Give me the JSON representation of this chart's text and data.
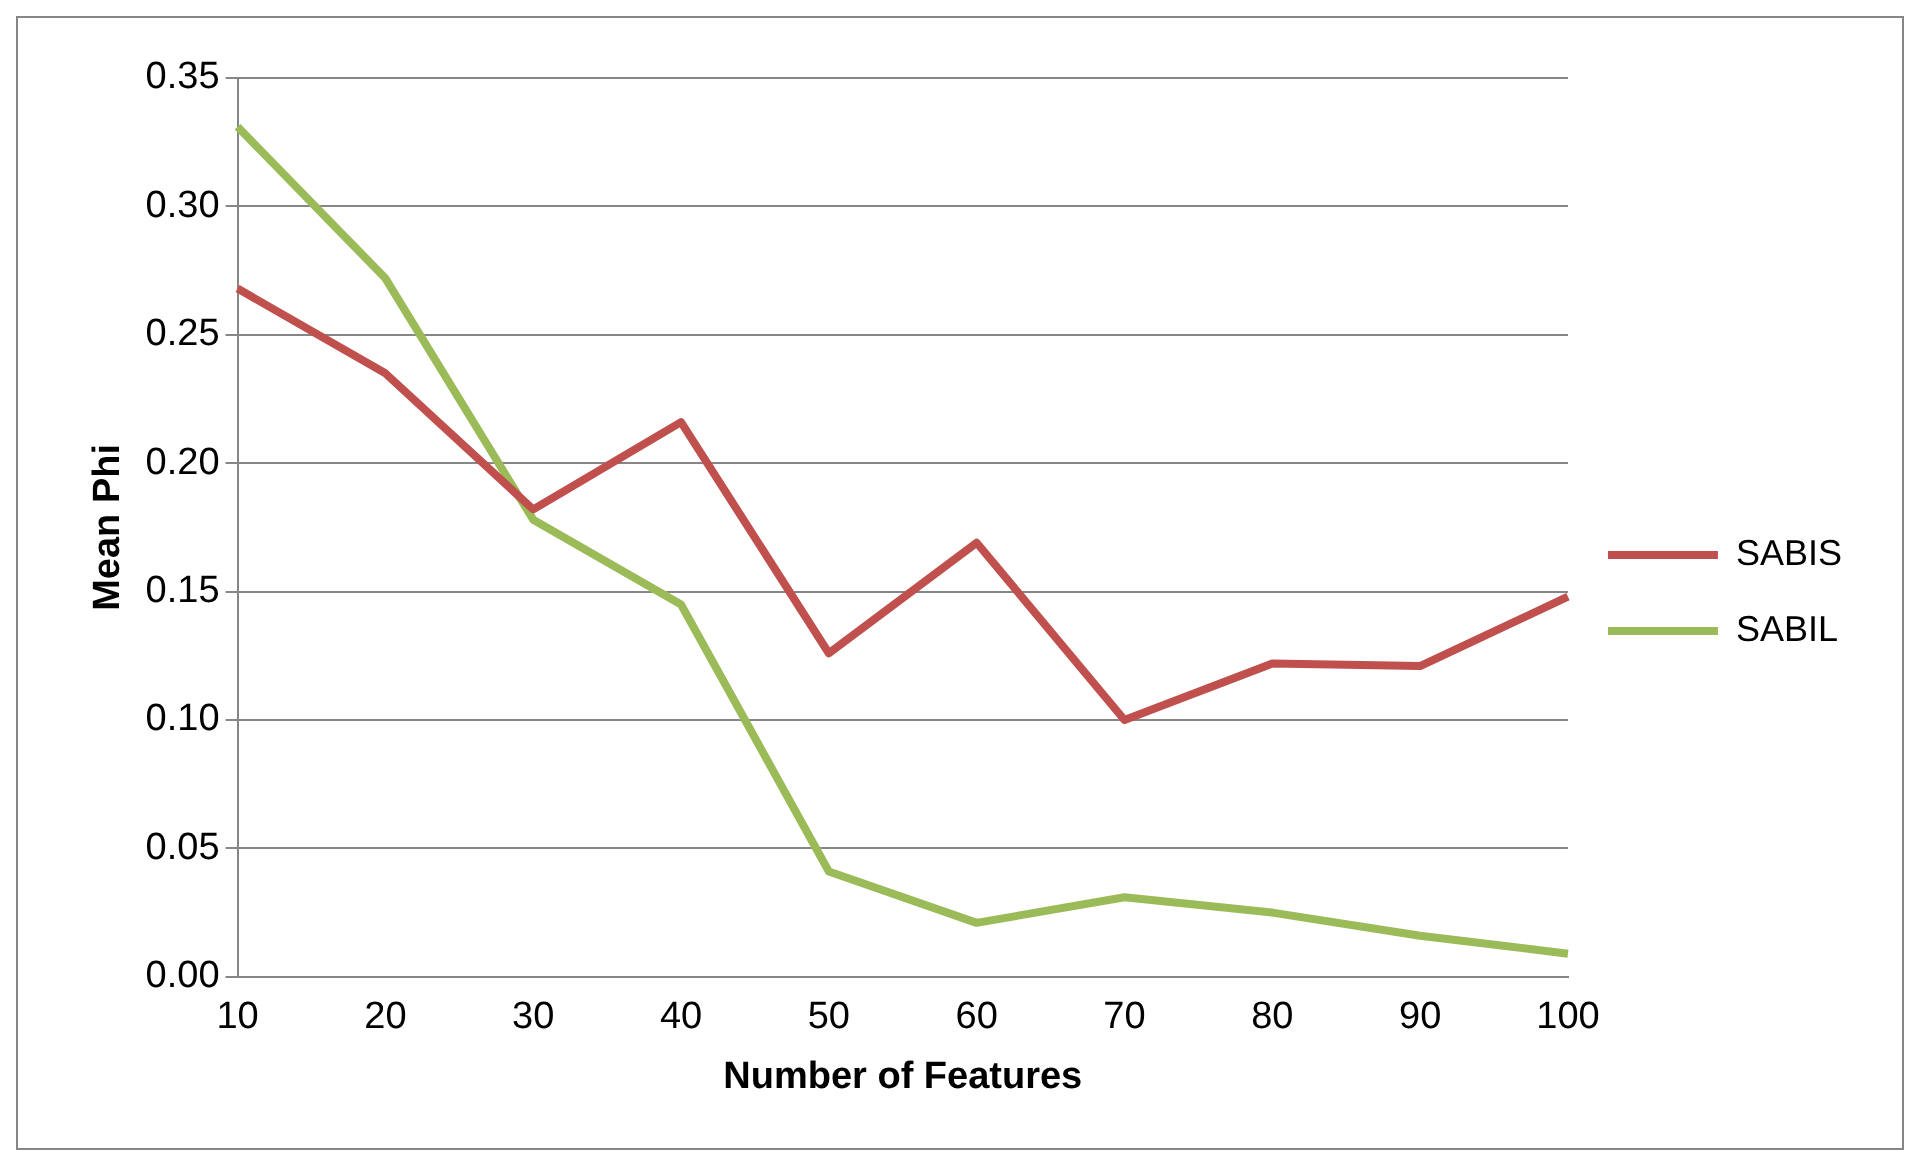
{
  "chart_data": {
    "type": "line",
    "xlabel": "Number of Features",
    "ylabel": "Mean Phi",
    "categories": [
      "10",
      "20",
      "30",
      "40",
      "50",
      "60",
      "70",
      "80",
      "90",
      "100"
    ],
    "series": [
      {
        "name": "SABIS",
        "color": "#c0504d",
        "values": [
          0.268,
          0.235,
          0.182,
          0.216,
          0.126,
          0.169,
          0.1,
          0.122,
          0.121,
          0.148
        ]
      },
      {
        "name": "SABIL",
        "color": "#9bbb59",
        "values": [
          0.331,
          0.272,
          0.178,
          0.145,
          0.041,
          0.021,
          0.031,
          0.025,
          0.016,
          0.009
        ]
      }
    ],
    "ylim": [
      0,
      0.35
    ],
    "yticks": [
      {
        "value": 0,
        "label": "0.00"
      },
      {
        "value": 0.05,
        "label": "0.05"
      },
      {
        "value": 0.1,
        "label": "0.10"
      },
      {
        "value": 0.15,
        "label": "0.15"
      },
      {
        "value": 0.2,
        "label": "0.20"
      },
      {
        "value": 0.25,
        "label": "0.25"
      },
      {
        "value": 0.3,
        "label": "0.30"
      },
      {
        "value": 0.35,
        "label": "0.35"
      }
    ],
    "grid": "y",
    "legend": "right",
    "marker": "none",
    "line_style": "solid"
  }
}
